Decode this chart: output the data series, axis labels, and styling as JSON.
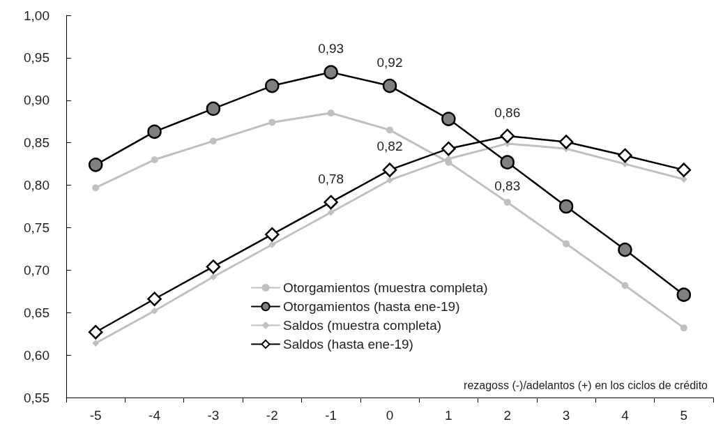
{
  "chart_data": {
    "type": "line",
    "xlabel": "rezagoss (-)/adelantos (+) en los ciclos de crédito",
    "categories": [
      "-5",
      "-4",
      "-3",
      "-2",
      "-1",
      "0",
      "1",
      "2",
      "3",
      "4",
      "5"
    ],
    "series": [
      {
        "name": "Otorgamientos (muestra completa)",
        "color": "#c0c0c0",
        "marker": "circle",
        "values": [
          0.797,
          0.83,
          0.852,
          0.874,
          0.885,
          0.865,
          0.827,
          0.78,
          0.731,
          0.682,
          0.632
        ]
      },
      {
        "name": "Otorgamientos (hasta ene-19)",
        "color": "#000000",
        "marker": "circle",
        "values": [
          0.824,
          0.863,
          0.89,
          0.917,
          0.933,
          0.917,
          0.878,
          0.827,
          0.775,
          0.724,
          0.671
        ],
        "value_labels": [
          null,
          null,
          null,
          null,
          "0,93",
          "0,92",
          null,
          "0,83",
          null,
          null,
          null
        ]
      },
      {
        "name": "Saldos (muestra completa)",
        "color": "#c0c0c0",
        "marker": "diamond",
        "values": [
          0.614,
          0.652,
          0.692,
          0.73,
          0.768,
          0.806,
          0.831,
          0.849,
          0.843,
          0.825,
          0.807
        ]
      },
      {
        "name": "Saldos (hasta ene-19)",
        "color": "#000000",
        "marker": "diamond",
        "values": [
          0.627,
          0.666,
          0.704,
          0.742,
          0.78,
          0.818,
          0.843,
          0.858,
          0.851,
          0.835,
          0.818
        ],
        "value_labels": [
          null,
          null,
          null,
          null,
          "0,78",
          "0,82",
          null,
          "0,86",
          null,
          null,
          null
        ]
      }
    ],
    "ylim": [
      0.55,
      1.0
    ],
    "yticks": [
      {
        "value": 0.55,
        "label": "0,55"
      },
      {
        "value": 0.6,
        "label": "0,60"
      },
      {
        "value": 0.65,
        "label": "0,65"
      },
      {
        "value": 0.7,
        "label": "0,70"
      },
      {
        "value": 0.75,
        "label": "0,75"
      },
      {
        "value": 0.8,
        "label": "0,80"
      },
      {
        "value": 0.85,
        "label": "0,85"
      },
      {
        "value": 0.9,
        "label": "0,90"
      },
      {
        "value": 0.95,
        "label": "0,95"
      },
      {
        "value": 1.0,
        "label": "1,00"
      }
    ],
    "grid": false,
    "legend": "bottom",
    "line_style": "solid"
  }
}
